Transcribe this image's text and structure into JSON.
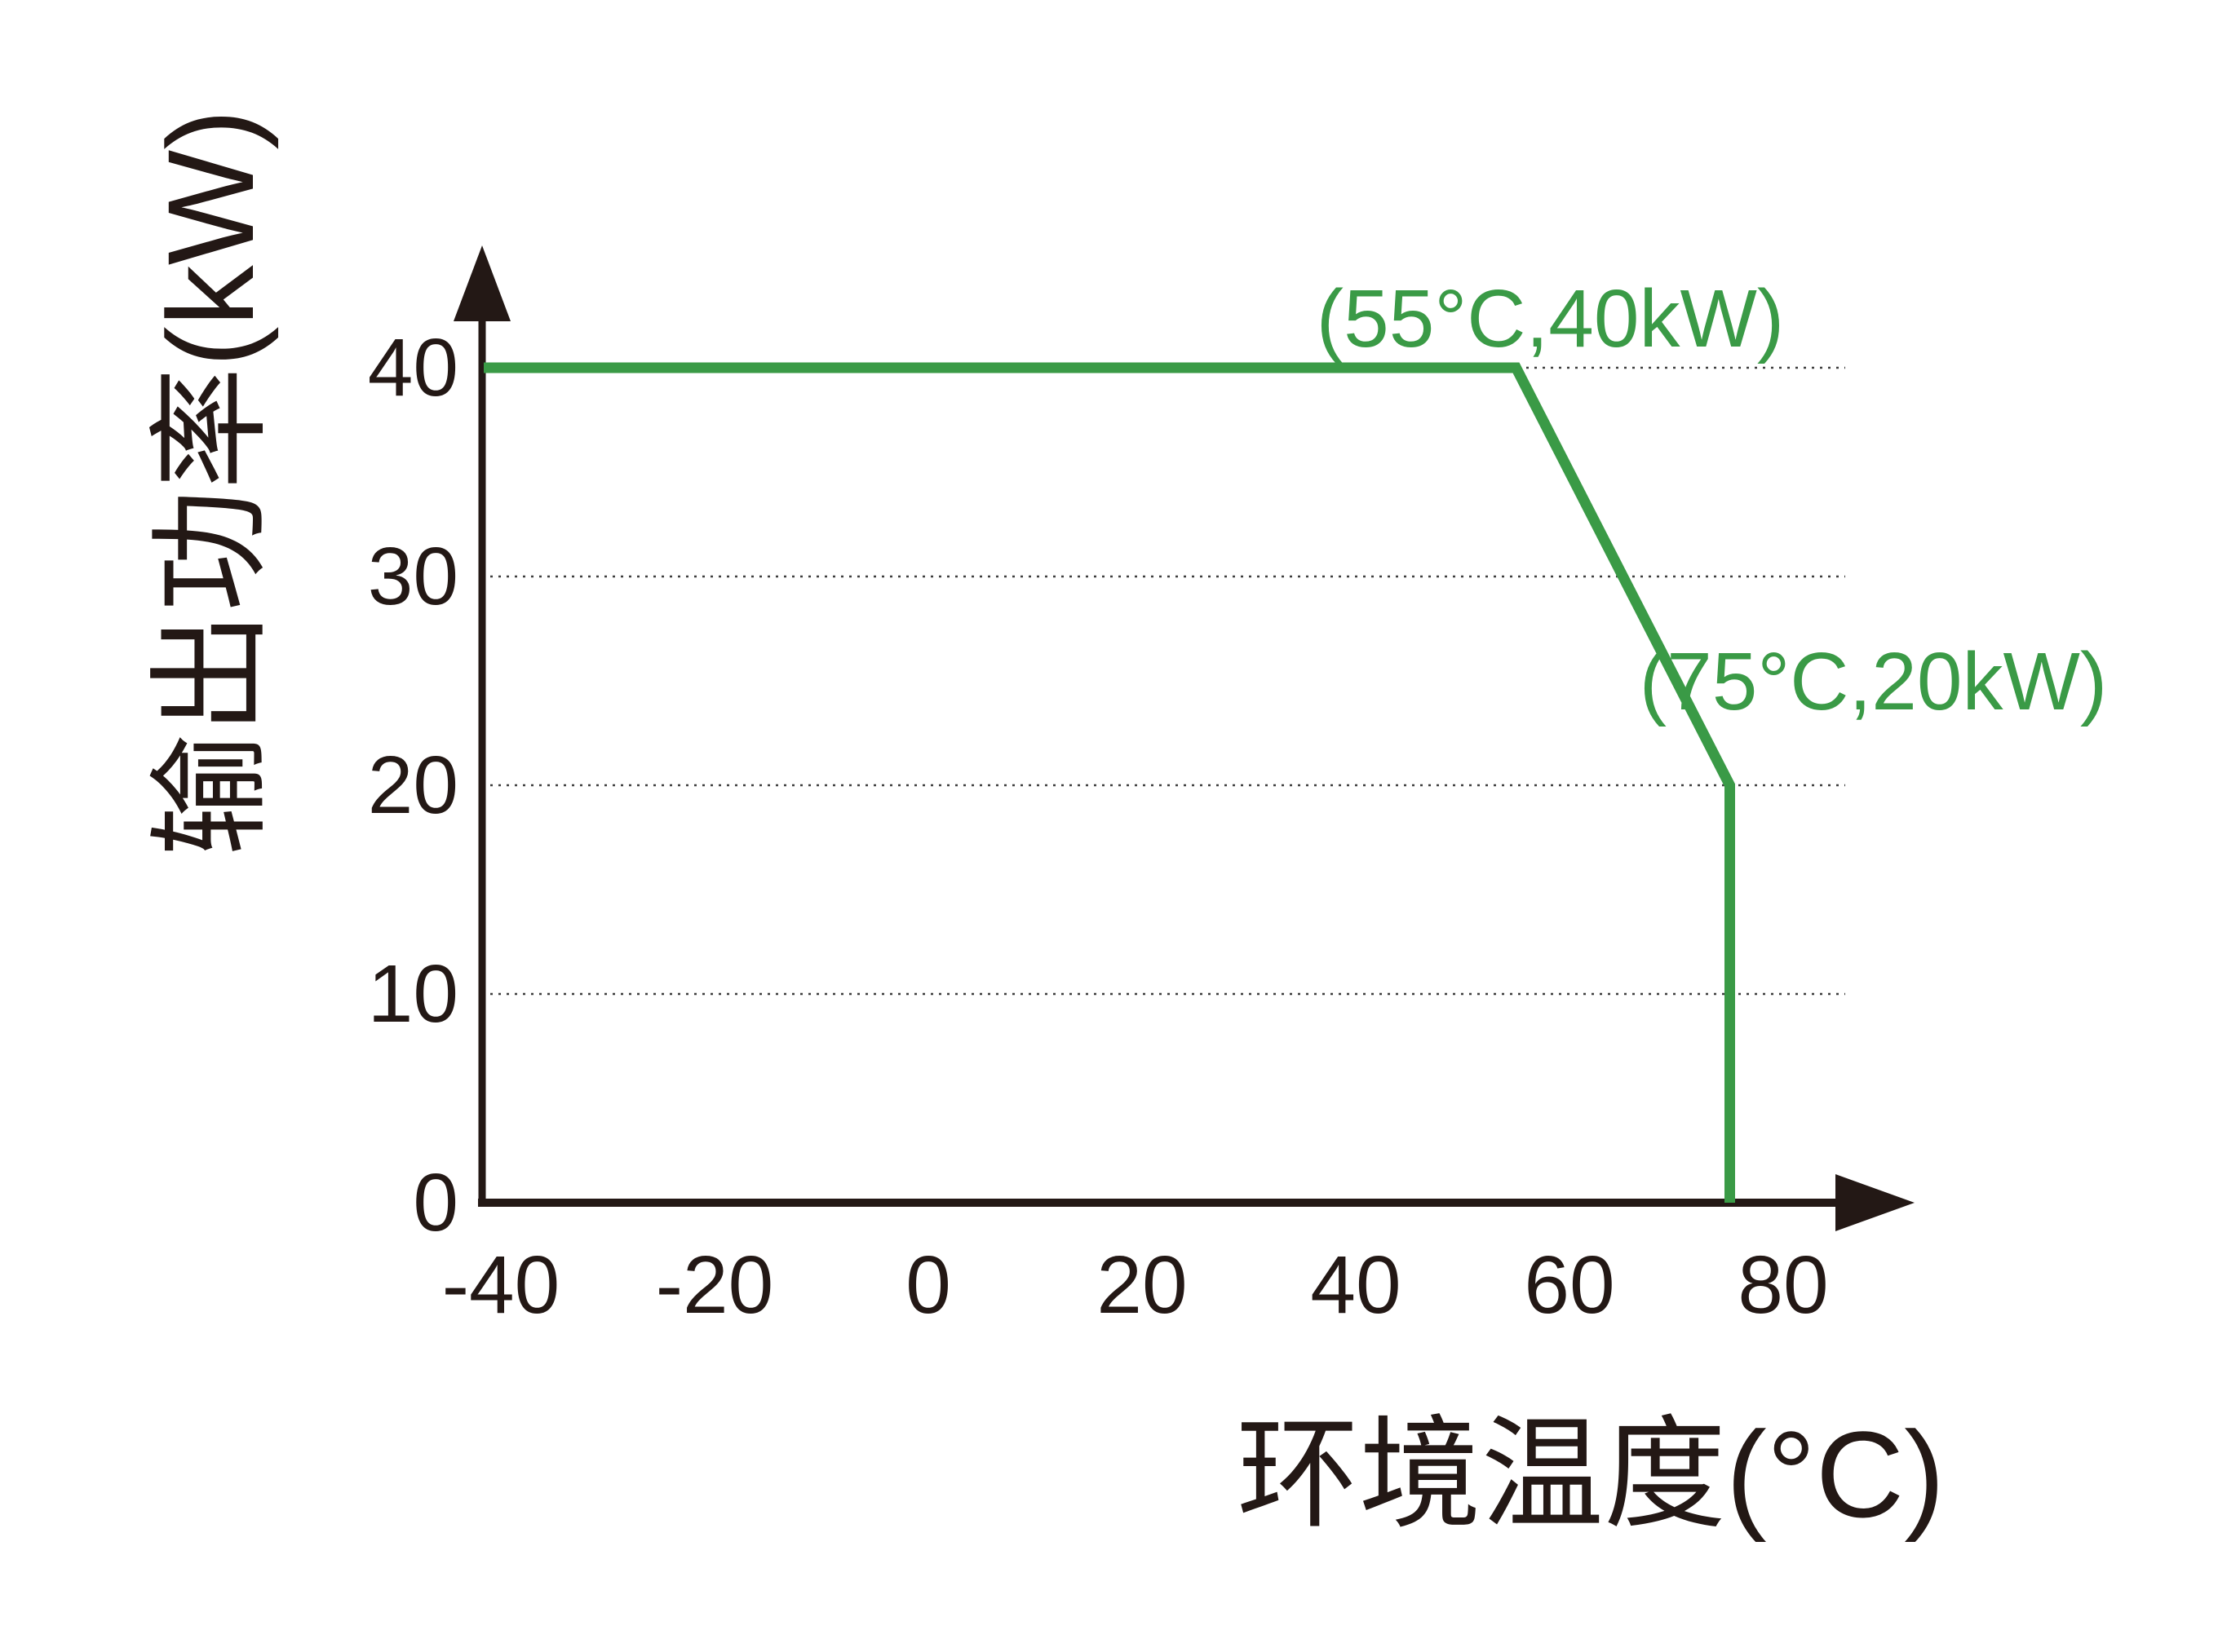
{
  "page": {
    "background": "#ffffff"
  },
  "colors": {
    "axis_ink": "#231815",
    "grid_dots": "#3d3d3d",
    "curve_green": "#3a9a46",
    "background": "#ffffff"
  },
  "chart_data": {
    "type": "line",
    "title": "",
    "xlabel": "环境温度(°C)",
    "ylabel": "输出功率(kW)",
    "x_ticks": [
      -40,
      -20,
      0,
      20,
      40,
      60,
      80
    ],
    "y_ticks": [
      0,
      10,
      20,
      30,
      40
    ],
    "xlim": [
      -40,
      88
    ],
    "ylim": [
      0,
      45
    ],
    "grid": {
      "horizontal_dotted_at": [
        10,
        20,
        30,
        40
      ]
    },
    "legend": "none",
    "series": [
      {
        "name": "输出功率",
        "color": "#3a9a46",
        "points": [
          [
            -40,
            40
          ],
          [
            55,
            40
          ],
          [
            75,
            20
          ],
          [
            75,
            0
          ]
        ]
      }
    ],
    "annotations": [
      {
        "text": "(55°C,40kW)",
        "at": [
          55,
          40
        ],
        "color": "#3a9a46"
      },
      {
        "text": "(75°C,20kW)",
        "at": [
          75,
          20
        ],
        "color": "#3a9a46"
      }
    ]
  }
}
